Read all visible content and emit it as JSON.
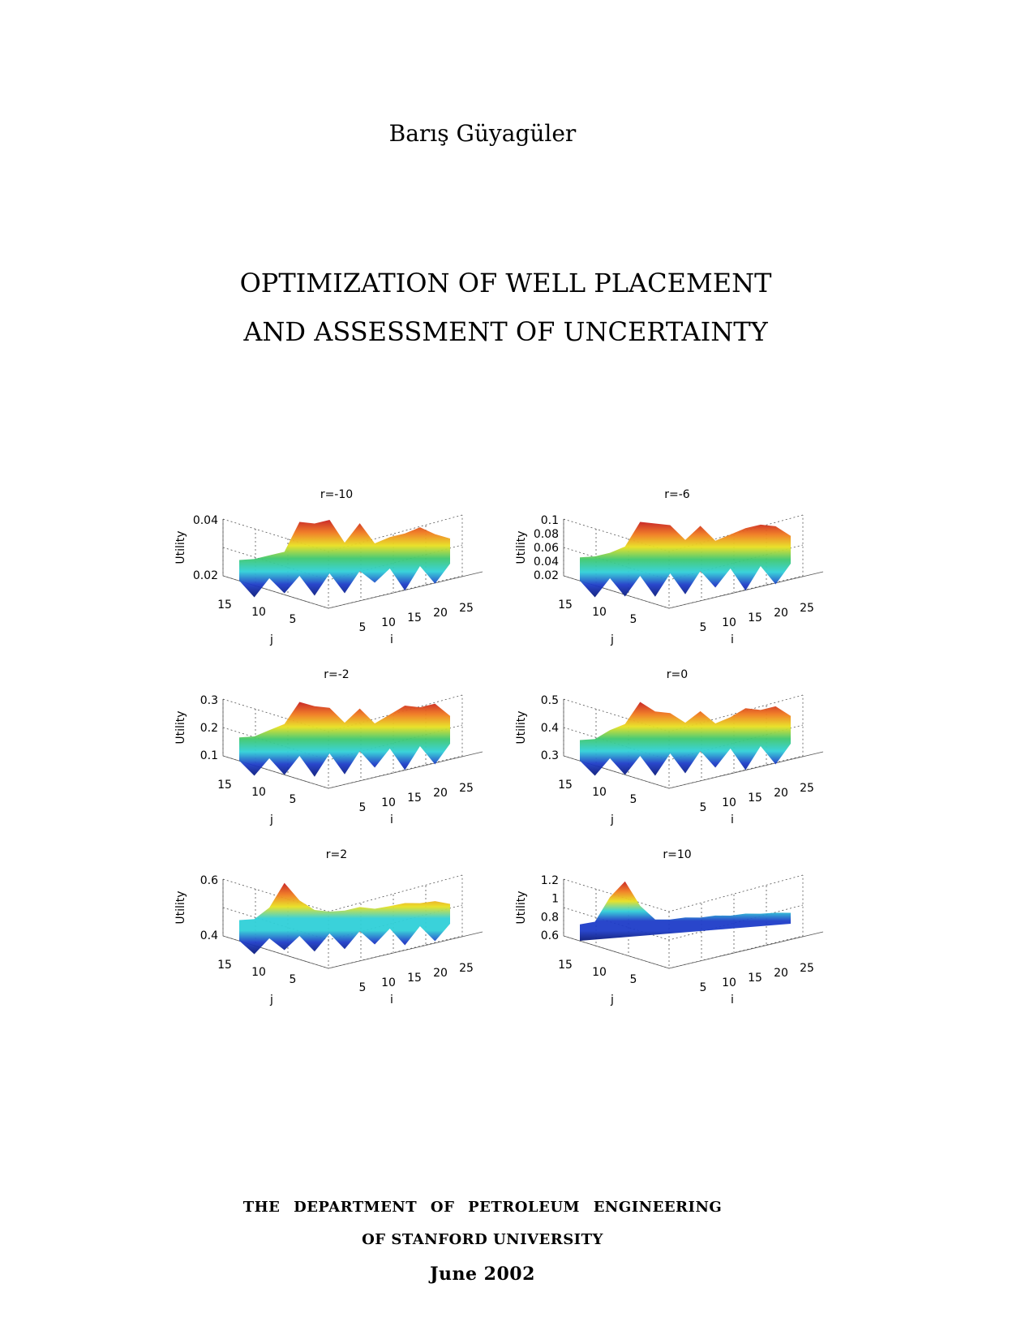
{
  "author": "Barış Güyagüler",
  "title": {
    "line1": "OPTIMIZATION OF WELL PLACEMENT",
    "line2": "AND ASSESSMENT OF UNCERTAINTY"
  },
  "figure": {
    "panels": [
      {
        "title": "r=-10",
        "zlabel": "Utility",
        "zticks": [
          "0.04",
          "0.02"
        ],
        "jticks": [
          "15",
          "10",
          "5"
        ],
        "iticks": [
          "5",
          "10",
          "15",
          "20",
          "25"
        ],
        "xlabel": "i",
        "ylabel": "j",
        "colormap": "warm"
      },
      {
        "title": "r=-6",
        "zlabel": "Utility",
        "zticks": [
          "0.1",
          "0.08",
          "0.06",
          "0.04",
          "0.02"
        ],
        "jticks": [
          "15",
          "10",
          "5"
        ],
        "iticks": [
          "5",
          "10",
          "15",
          "20",
          "25"
        ],
        "xlabel": "i",
        "ylabel": "j",
        "colormap": "warm"
      },
      {
        "title": "r=-2",
        "zlabel": "Utility",
        "zticks": [
          "0.3",
          "0.2",
          "0.1"
        ],
        "jticks": [
          "15",
          "10",
          "5"
        ],
        "iticks": [
          "5",
          "10",
          "15",
          "20",
          "25"
        ],
        "xlabel": "i",
        "ylabel": "j",
        "colormap": "warm"
      },
      {
        "title": "r=0",
        "zlabel": "Utility",
        "zticks": [
          "0.5",
          "0.4",
          "0.3"
        ],
        "jticks": [
          "15",
          "10",
          "5"
        ],
        "iticks": [
          "5",
          "10",
          "15",
          "20",
          "25"
        ],
        "xlabel": "i",
        "ylabel": "j",
        "colormap": "warm"
      },
      {
        "title": "r=2",
        "zlabel": "Utility",
        "zticks": [
          "0.6",
          "0.4"
        ],
        "jticks": [
          "15",
          "10",
          "5"
        ],
        "iticks": [
          "5",
          "10",
          "15",
          "20",
          "25"
        ],
        "xlabel": "i",
        "ylabel": "j",
        "colormap": "cool"
      },
      {
        "title": "r=10",
        "zlabel": "Utility",
        "zticks": [
          "1.2",
          "1",
          "0.8",
          "0.6"
        ],
        "jticks": [
          "15",
          "10",
          "5"
        ],
        "iticks": [
          "5",
          "10",
          "15",
          "20",
          "25"
        ],
        "xlabel": "i",
        "ylabel": "j",
        "colormap": "blue"
      }
    ]
  },
  "footer": {
    "department": "THE DEPARTMENT OF PETROLEUM ENGINEERING",
    "university": "OF STANFORD UNIVERSITY",
    "date": "June 2002"
  },
  "colors": {
    "red": "#c81e1e",
    "orange": "#f07a1e",
    "yellow": "#e8e020",
    "green": "#3ec870",
    "cyan": "#30d0d8",
    "blue": "#1e3cc8",
    "navy": "#0a1a7a"
  }
}
